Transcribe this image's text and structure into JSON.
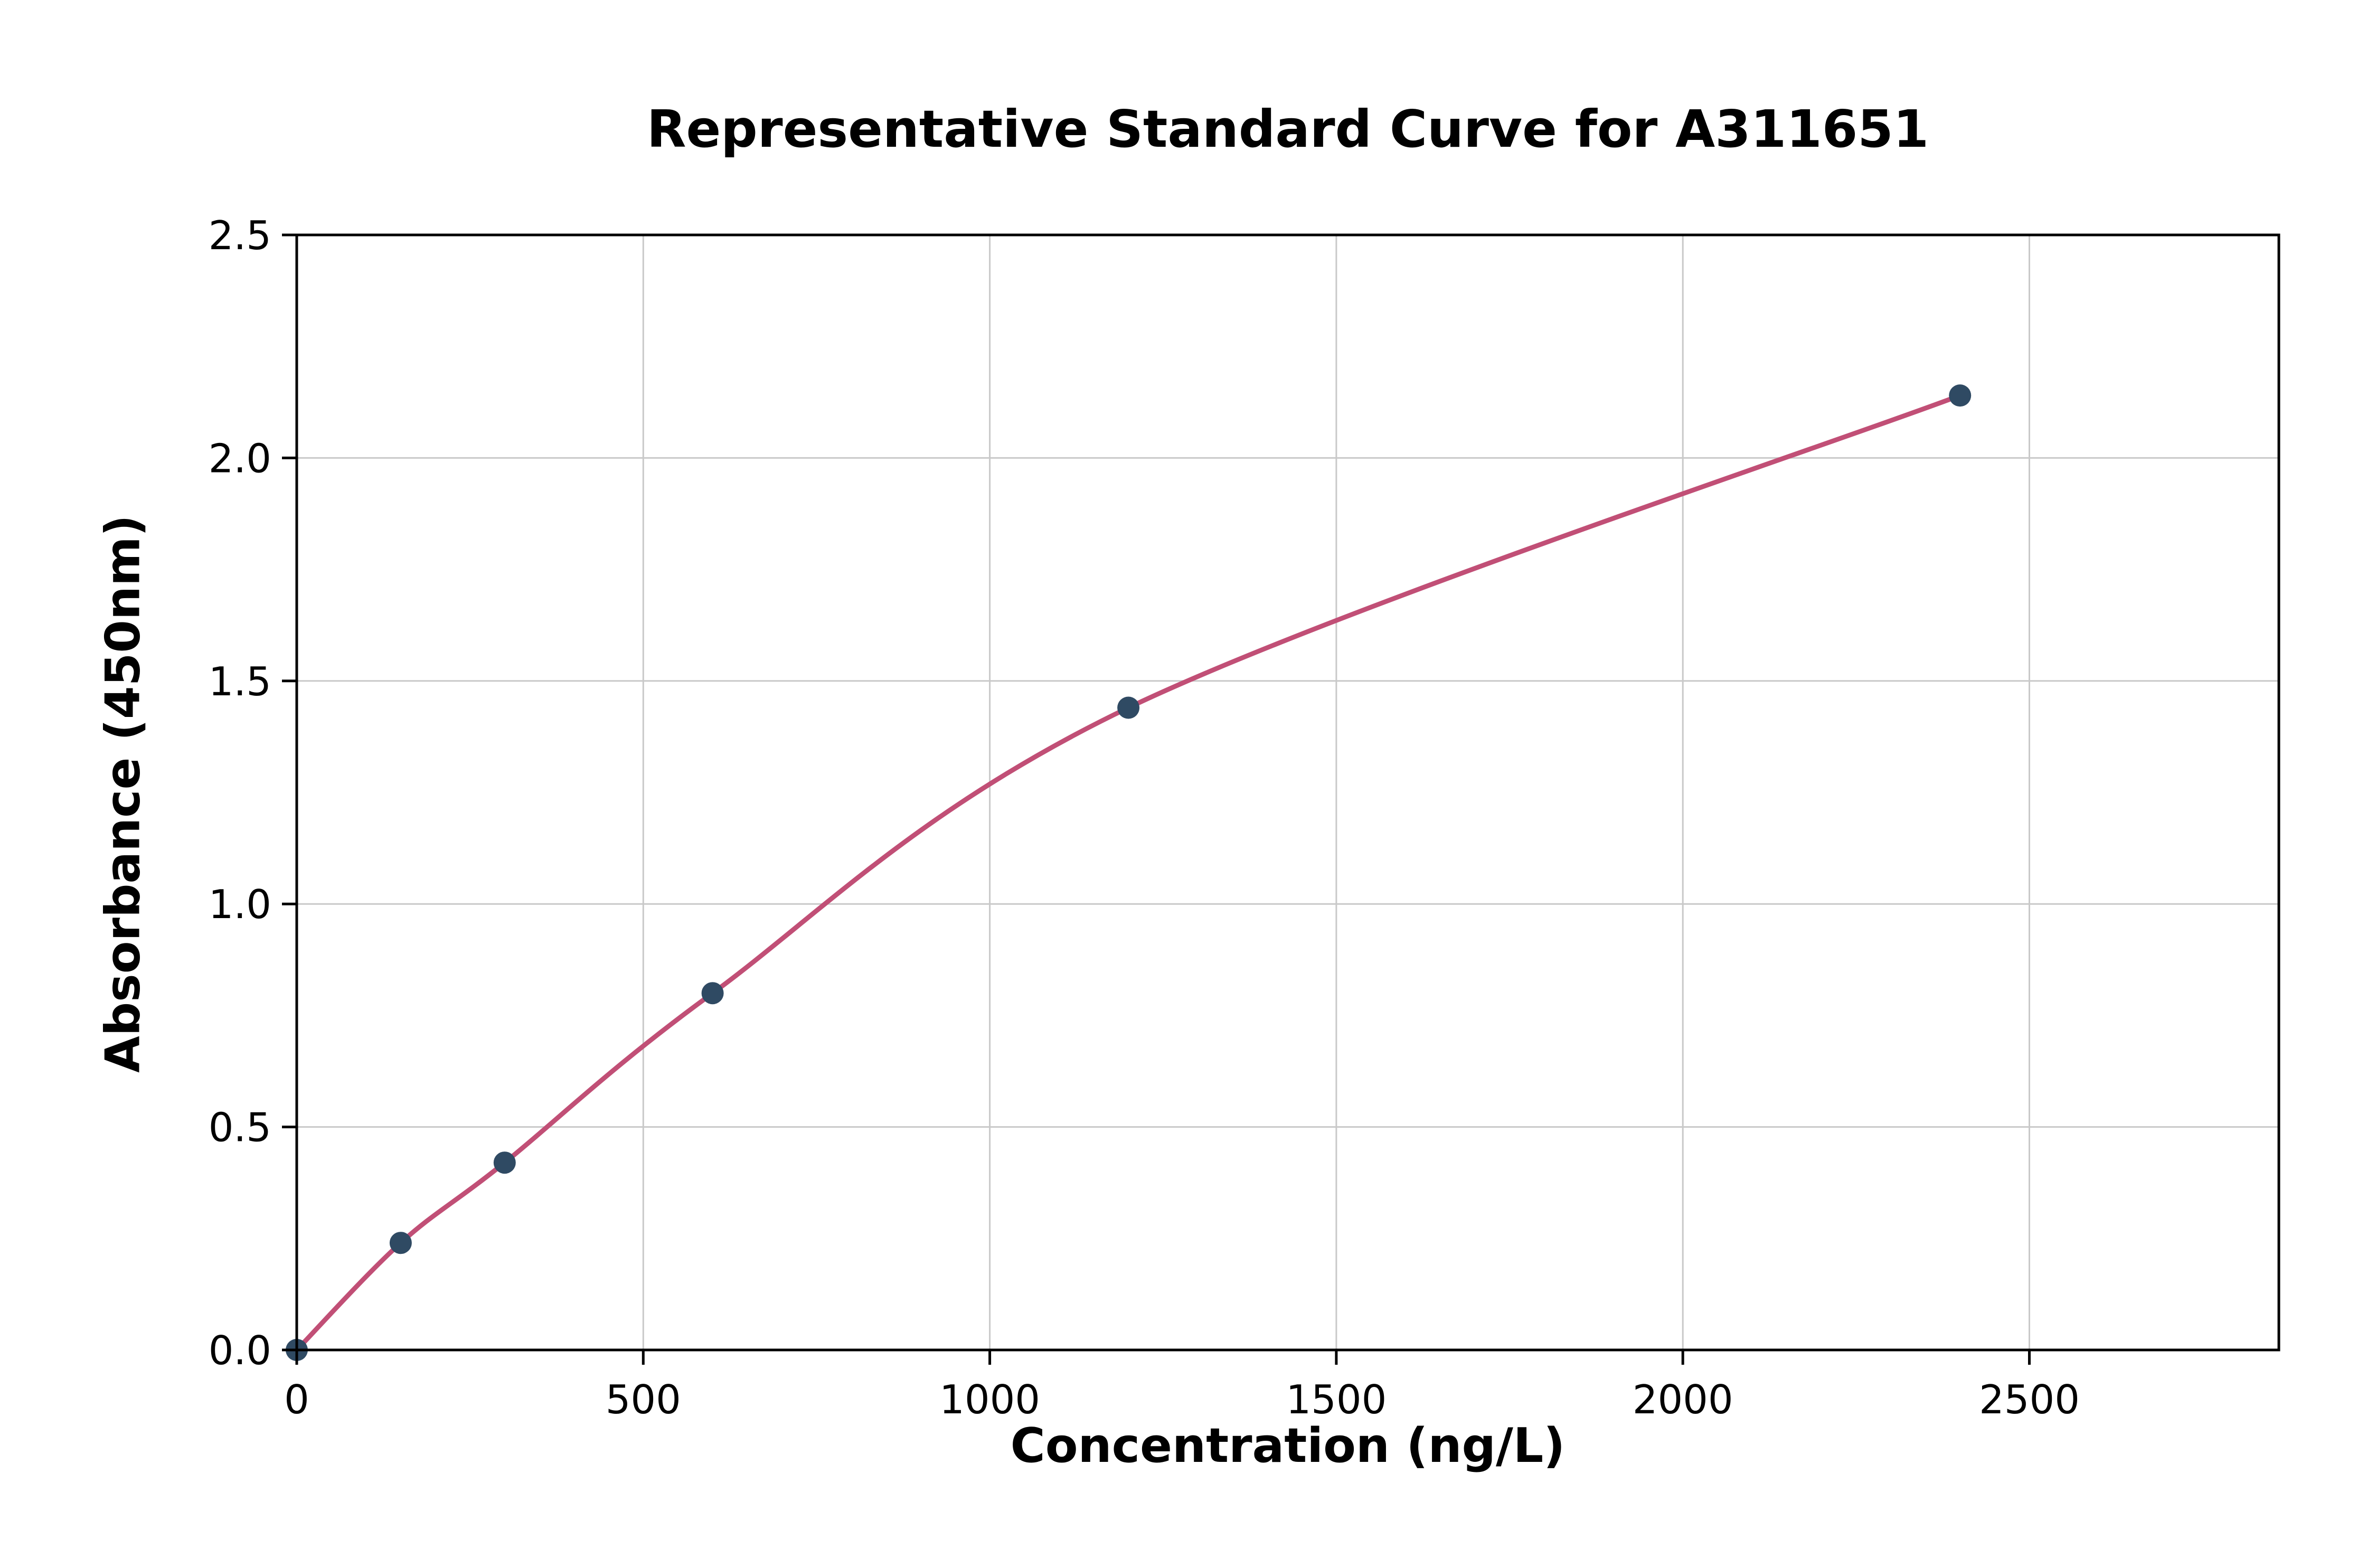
{
  "chart_data": {
    "type": "scatter",
    "title": "Representative Standard Curve for A311651",
    "xlabel": "Concentration (ng/L)",
    "ylabel": "Absorbance (450nm)",
    "xlim": [
      0,
      2860
    ],
    "ylim": [
      0,
      2.5
    ],
    "x_ticks": [
      0,
      500,
      1000,
      1500,
      2000,
      2500
    ],
    "x_tick_labels": [
      "0",
      "500",
      "1000",
      "1500",
      "2000",
      "2500"
    ],
    "y_ticks": [
      0.0,
      0.5,
      1.0,
      1.5,
      2.0,
      2.5
    ],
    "y_tick_labels": [
      "0.0",
      "0.5",
      "1.0",
      "1.5",
      "2.0",
      "2.5"
    ],
    "grid": true,
    "series": [
      {
        "name": "standard-curve",
        "points": [
          [
            0,
            0.0
          ],
          [
            150,
            0.24
          ],
          [
            300,
            0.42
          ],
          [
            600,
            0.8
          ],
          [
            1200,
            1.44
          ],
          [
            2400,
            2.14
          ]
        ]
      }
    ],
    "curve_color": "#c14f76",
    "point_color": "#2f4a63",
    "grid_color": "#c9c9c9",
    "frame_color": "#000000",
    "background_color": "#ffffff"
  }
}
